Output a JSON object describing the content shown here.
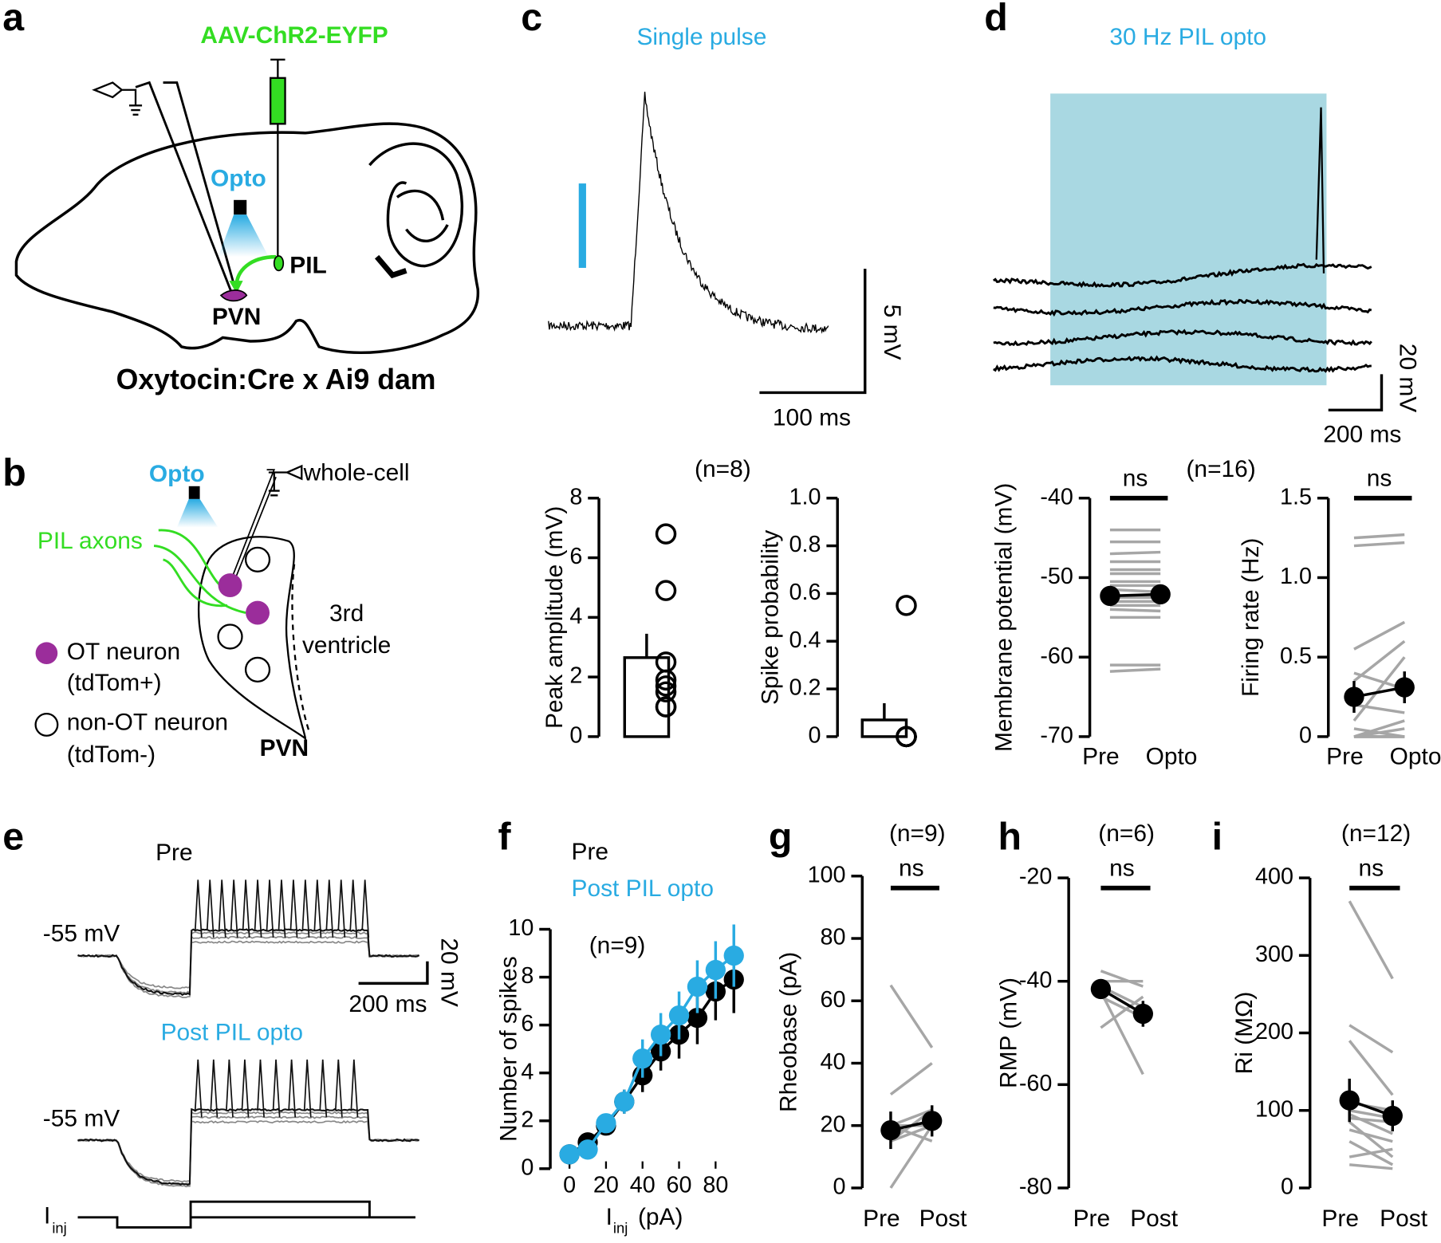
{
  "panel_labels": [
    "a",
    "b",
    "c",
    "d",
    "e",
    "f",
    "g",
    "h",
    "i"
  ],
  "panel_a": {
    "virus": "AAV-ChR2-EYFP",
    "opto": "Opto",
    "pil": "PIL",
    "pvn": "PVN",
    "caption": "Oxytocin:Cre x Ai9 dam"
  },
  "panel_b": {
    "opto": "Opto",
    "recording": "whole-cell",
    "axons": "PIL axons",
    "ot_neuron": "OT neuron",
    "ot_marker": "(tdTom+)",
    "non_ot_neuron": "non-OT neuron",
    "non_ot_marker": "(tdTom-)",
    "ventricle_1": "3rd",
    "ventricle_2": "ventricle",
    "pvn": "PVN"
  },
  "panel_c": {
    "title": "Single pulse",
    "scale_y": "5 mV",
    "scale_x": "100 ms"
  },
  "panel_d": {
    "title": "30 Hz PIL opto",
    "scale_y": "20 mV",
    "scale_x": "200 ms"
  },
  "panel_e": {
    "pre": "Pre",
    "pre_baseline": "-55 mV",
    "scale_y": "20 mV",
    "scale_x": "200 ms",
    "post": "Post PIL opto",
    "post_baseline": "-55 mV",
    "current": "I",
    "current_sub": "inj"
  },
  "chart_data": [
    {
      "type": "bar_scatter",
      "ylabel": "Peak amplitude (mV)",
      "annotation": "(n=8)",
      "ylim": [
        0,
        8
      ],
      "yticks": [
        0,
        2,
        4,
        6,
        8
      ],
      "bar": {
        "value": 2.65,
        "error": 0.8
      },
      "points": [
        6.8,
        4.9,
        2.5,
        1.9,
        1.7,
        1.5,
        1.0,
        1.0
      ]
    },
    {
      "type": "bar_scatter",
      "ylabel": "Spike probability",
      "ylim": [
        0,
        1
      ],
      "yticks": [
        0,
        0.2,
        0.4,
        0.6,
        0.8,
        {
          "value": 1,
          "label": "1.0"
        }
      ],
      "bar": {
        "value": 0.07,
        "error": 0.07
      },
      "points": [
        0.55,
        0,
        0,
        0,
        0,
        0,
        0,
        0
      ]
    },
    {
      "type": "paired",
      "ylabel": "Membrane potential (mV)",
      "annotation": "(n=16)",
      "significance": "ns",
      "categories": [
        "Pre",
        "Opto"
      ],
      "ylim": [
        -70,
        -40
      ],
      "yticks": [
        -70,
        -60,
        -50,
        -40
      ],
      "individual": {
        "color": "#a6a6a6",
        "values": [
          [
            -44,
            -44
          ],
          [
            -45.5,
            -45.5
          ],
          [
            -47,
            -46.8
          ],
          [
            -48,
            -48
          ],
          [
            -49,
            -49
          ],
          [
            -49.5,
            -49.5
          ],
          [
            -50.5,
            -50.5
          ],
          [
            -51,
            -51
          ],
          [
            -51.5,
            -51.8
          ],
          [
            -52.5,
            -52.5
          ],
          [
            -53,
            -53
          ],
          [
            -53.5,
            -53.5
          ],
          [
            -54,
            -54.2
          ],
          [
            -55,
            -55
          ],
          [
            -61,
            -61
          ],
          [
            -61.8,
            -61.5
          ]
        ]
      },
      "mean": {
        "color": "#000000",
        "values": [
          -52.3,
          -52.1
        ],
        "errors": [
          0.9,
          0.9
        ]
      }
    },
    {
      "type": "paired",
      "ylabel": "Firing rate (Hz)",
      "significance": "ns",
      "categories": [
        "Pre",
        "Opto"
      ],
      "ylim": [
        0,
        1.5
      ],
      "yticks": [
        0,
        0.5,
        {
          "value": 1,
          "label": "1.0"
        },
        1.5
      ],
      "individual": {
        "color": "#a6a6a6",
        "values": [
          [
            1.25,
            1.27
          ],
          [
            1.2,
            1.22
          ],
          [
            0.55,
            0.72
          ],
          [
            0.35,
            0.6
          ],
          [
            0.4,
            0.3
          ],
          [
            0.1,
            0.5
          ],
          [
            0.2,
            0.15
          ],
          [
            0,
            0.1
          ],
          [
            0,
            0.05
          ],
          [
            0.05,
            0
          ],
          [
            0,
            0
          ],
          [
            0,
            0
          ],
          [
            0,
            0
          ],
          [
            0,
            0
          ],
          [
            0,
            0
          ],
          [
            0,
            0
          ]
        ]
      },
      "mean": {
        "color": "#000000",
        "values": [
          0.25,
          0.31
        ],
        "errors": [
          0.1,
          0.1
        ]
      }
    },
    {
      "type": "line",
      "ylabel": "Number of spikes",
      "xlabel": "I",
      "xlabel_sub": "inj",
      "xlabel_unit": "(pA)",
      "annotation": "(n=9)",
      "x": [
        0,
        10,
        20,
        30,
        40,
        50,
        60,
        70,
        80,
        90
      ],
      "xlim": [
        -10,
        95
      ],
      "xticks": [
        0,
        20,
        40,
        60,
        80
      ],
      "ylim": [
        0,
        10
      ],
      "yticks": [
        0,
        2,
        4,
        6,
        8,
        10
      ],
      "series": [
        {
          "name": "Pre",
          "color": "#000000",
          "values": [
            0.6,
            1.1,
            1.8,
            2.8,
            3.9,
            4.9,
            5.6,
            6.3,
            7.4,
            7.9
          ],
          "errors": [
            0.2,
            0.3,
            0.4,
            0.5,
            0.7,
            0.8,
            1.0,
            1.1,
            1.2,
            1.4
          ]
        },
        {
          "name": "Post PIL opto",
          "color": "#29abe2",
          "values": [
            0.6,
            0.8,
            1.9,
            2.8,
            4.6,
            5.6,
            6.4,
            7.6,
            8.3,
            8.9
          ],
          "errors": [
            0.2,
            0.3,
            0.4,
            0.5,
            0.8,
            0.9,
            1.0,
            1.1,
            1.2,
            1.3
          ]
        }
      ]
    },
    {
      "type": "paired",
      "ylabel": "Rheobase (pA)",
      "annotation": "(n=9)",
      "significance": "ns",
      "categories": [
        "Pre",
        "Post"
      ],
      "ylim": [
        0,
        100
      ],
      "yticks": [
        0,
        20,
        40,
        60,
        80,
        100
      ],
      "individual": {
        "color": "#a6a6a6",
        "values": [
          [
            65,
            45
          ],
          [
            30,
            40
          ],
          [
            20,
            25
          ],
          [
            20,
            20
          ],
          [
            15,
            25
          ],
          [
            20,
            15
          ],
          [
            0,
            20
          ],
          [
            15,
            20
          ],
          [
            20,
            20
          ]
        ]
      },
      "mean": {
        "color": "#000000",
        "values": [
          18.5,
          21.5
        ],
        "errors": [
          6,
          5
        ]
      }
    },
    {
      "type": "paired",
      "ylabel": "RMP (mV)",
      "annotation": "(n=6)",
      "significance": "ns",
      "categories": [
        "Pre",
        "Post"
      ],
      "ylim": [
        -80,
        -20
      ],
      "yticks": [
        -80,
        -60,
        -40,
        -20
      ],
      "individual": {
        "color": "#a6a6a6",
        "values": [
          [
            -38,
            -41
          ],
          [
            -40,
            -40
          ],
          [
            -41,
            -45
          ],
          [
            -42,
            -58
          ],
          [
            -49,
            -43
          ],
          [
            -43,
            -47
          ]
        ]
      },
      "mean": {
        "color": "#000000",
        "values": [
          -41.5,
          -46.3
        ],
        "errors": [
          1.5,
          2.5
        ]
      }
    },
    {
      "type": "paired",
      "ylabel": "Ri (MΩ)",
      "annotation": "(n=12)",
      "significance": "ns",
      "categories": [
        "Pre",
        "Post"
      ],
      "ylim": [
        0,
        400
      ],
      "yticks": [
        0,
        100,
        200,
        300,
        400
      ],
      "individual": {
        "color": "#a6a6a6",
        "values": [
          [
            370,
            270
          ],
          [
            210,
            175
          ],
          [
            190,
            120
          ],
          [
            110,
            100
          ],
          [
            100,
            90
          ],
          [
            95,
            70
          ],
          [
            90,
            85
          ],
          [
            85,
            40
          ],
          [
            75,
            60
          ],
          [
            60,
            30
          ],
          [
            40,
            50
          ],
          [
            30,
            25
          ]
        ]
      },
      "mean": {
        "color": "#000000",
        "values": [
          113,
          93
        ],
        "errors": [
          28,
          20
        ]
      }
    }
  ]
}
